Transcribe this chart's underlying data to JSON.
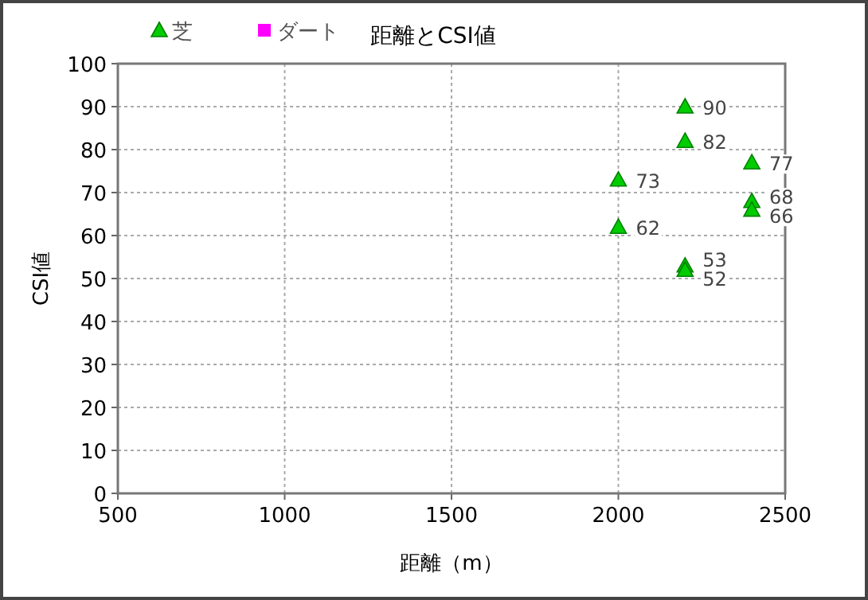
{
  "chart_data": {
    "type": "scatter",
    "title": "距離とCSI値",
    "xlabel": "距離（m）",
    "ylabel": "CSI値",
    "xlim": [
      500,
      2500
    ],
    "xticks": [
      500,
      1000,
      1500,
      2000,
      2500
    ],
    "ylim": [
      0,
      100
    ],
    "yticks": [
      0,
      10,
      20,
      30,
      40,
      50,
      60,
      70,
      80,
      90,
      100
    ],
    "grid": true,
    "legend": "top left",
    "data_labels": true,
    "series": [
      {
        "name": "芝",
        "color": "#00cc00",
        "marker": "triangle",
        "x": [
          2200,
          2200,
          2000,
          2400,
          2400,
          2400,
          2000,
          2200,
          2200
        ],
        "values": [
          90,
          82,
          73,
          77,
          68,
          66,
          62,
          53,
          52
        ]
      },
      {
        "name": "ダート",
        "color": "#ff00ff",
        "marker": "square"
      }
    ]
  }
}
